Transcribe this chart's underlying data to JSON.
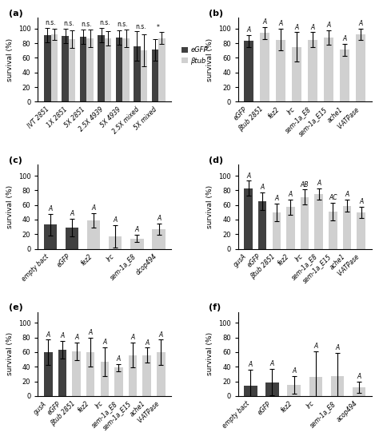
{
  "panel_a": {
    "title": "(a)",
    "categories": [
      "IVT 2851",
      "1X 2851",
      "5X 2851",
      "2.5X 4939",
      "5X 4939",
      "2.5X mixed",
      "5X mixed"
    ],
    "egfp_values": [
      91,
      90,
      89,
      91,
      88,
      76,
      71
    ],
    "egfp_errors": [
      10,
      10,
      10,
      10,
      10,
      20,
      15
    ],
    "btub_values": [
      92,
      86,
      87,
      87,
      87,
      70,
      87
    ],
    "btub_errors": [
      8,
      12,
      12,
      10,
      12,
      22,
      8
    ],
    "annotations": [
      "n.s.",
      "n.s.",
      "n.s.",
      "n.s.",
      "n.s.",
      "n.s.",
      "*"
    ],
    "ylim": [
      0,
      115
    ],
    "yticks": [
      0,
      20,
      40,
      60,
      80,
      100
    ]
  },
  "panel_b": {
    "title": "(b)",
    "categories": [
      "eGFP",
      "βtub 2851",
      "fez2",
      "lrc",
      "sem-1a_E8",
      "sem-1a_E15",
      "ache1",
      "V-ATPase"
    ],
    "values": [
      83,
      94,
      85,
      75,
      85,
      88,
      71,
      92
    ],
    "errors": [
      8,
      8,
      15,
      20,
      10,
      10,
      8,
      8
    ],
    "is_dark": [
      true,
      false,
      false,
      false,
      false,
      false,
      false,
      false
    ],
    "annotations": [
      "A",
      "A",
      "A",
      "A",
      "A",
      "A",
      "A",
      "A"
    ],
    "ylim": [
      0,
      115
    ],
    "yticks": [
      0,
      20,
      40,
      60,
      80,
      100
    ]
  },
  "panel_c": {
    "title": "(c)",
    "categories": [
      "empty bact",
      "eGFP",
      "fez2",
      "lrc",
      "sem-1a_E8",
      "dcop494"
    ],
    "values": [
      33,
      29,
      39,
      17,
      14,
      27
    ],
    "errors": [
      15,
      12,
      10,
      15,
      5,
      8
    ],
    "is_dark": [
      true,
      true,
      false,
      false,
      false,
      false
    ],
    "annotations": [
      "A",
      "A",
      "A",
      "A",
      "A",
      "A"
    ],
    "ylim": [
      0,
      115
    ],
    "yticks": [
      0,
      20,
      40,
      60,
      80,
      100
    ]
  },
  "panel_d": {
    "title": "(d)",
    "categories": [
      "gusA",
      "eGFP",
      "βtub 2851",
      "fez2",
      "lrc",
      "sem-1a_E8",
      "sem-1a_E15",
      "ache1",
      "V-ATPase"
    ],
    "values": [
      83,
      65,
      50,
      57,
      71,
      75,
      51,
      59,
      50
    ],
    "errors": [
      10,
      12,
      12,
      10,
      10,
      8,
      12,
      8,
      8
    ],
    "is_dark": [
      true,
      true,
      false,
      false,
      false,
      false,
      false,
      false,
      false
    ],
    "annotations": [
      "A",
      "A",
      "A",
      "A",
      "AB",
      "A",
      "AC",
      "A",
      "A"
    ],
    "ylim": [
      0,
      115
    ],
    "yticks": [
      0,
      20,
      40,
      60,
      80,
      100
    ]
  },
  "panel_e": {
    "title": "(e)",
    "categories": [
      "gusA",
      "eGFP",
      "βtub 2851",
      "fez2",
      "lrc",
      "sem-1a_E8",
      "sem-1a_E15",
      "ache1",
      "V-ATPase"
    ],
    "values": [
      60,
      63,
      61,
      60,
      47,
      39,
      56,
      56,
      60
    ],
    "errors": [
      17,
      12,
      12,
      20,
      20,
      5,
      17,
      10,
      17
    ],
    "is_dark": [
      true,
      true,
      false,
      false,
      false,
      false,
      false,
      false,
      false
    ],
    "annotations": [
      "A",
      "A",
      "A",
      "A",
      "A",
      "A",
      "A",
      "A",
      "A"
    ],
    "ylim": [
      0,
      115
    ],
    "yticks": [
      0,
      20,
      40,
      60,
      80,
      100
    ]
  },
  "panel_f": {
    "title": "(f)",
    "categories": [
      "empty bact",
      "eGFP",
      "fez2",
      "lrc",
      "sem-1a_E8",
      "acop494"
    ],
    "values": [
      14,
      19,
      15,
      26,
      27,
      12
    ],
    "errors": [
      22,
      18,
      12,
      35,
      32,
      8
    ],
    "is_dark": [
      true,
      true,
      false,
      false,
      false,
      false
    ],
    "annotations": [
      "A",
      "A",
      "A",
      "A",
      "A",
      "A"
    ],
    "ylim": [
      0,
      115
    ],
    "yticks": [
      0,
      20,
      40,
      60,
      80,
      100
    ]
  },
  "dark_color": "#404040",
  "light_color": "#d0d0d0",
  "ylabel": "survival (%)",
  "legend_egfp": "eGFP",
  "legend_btub": "βtub"
}
